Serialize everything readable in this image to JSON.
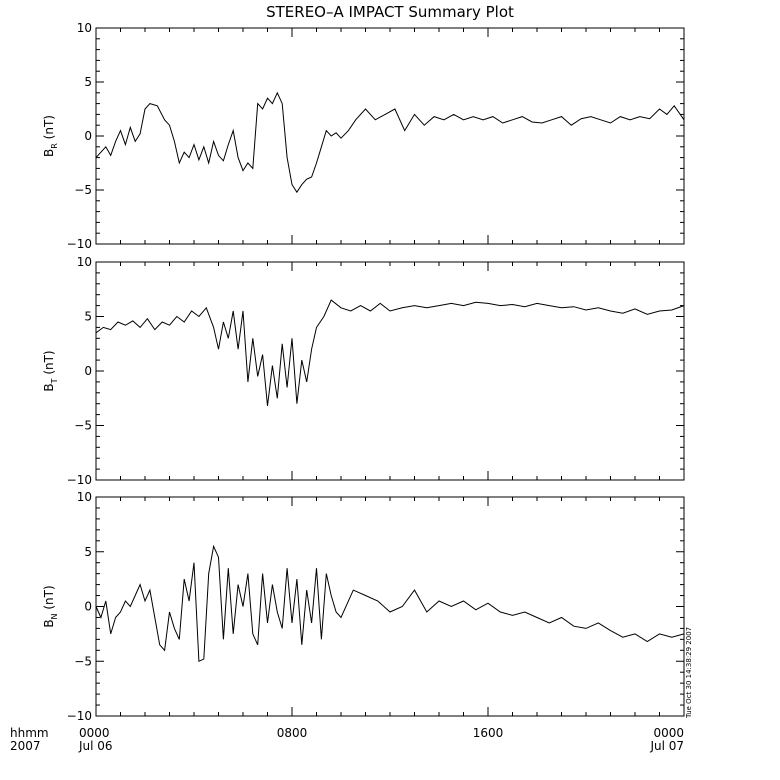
{
  "chart_data": {
    "type": "line",
    "title": "STEREO–A IMPACT Summary Plot",
    "x_axis": {
      "corner_labels": [
        "hhmm",
        "2007"
      ],
      "range_hours": [
        0,
        24
      ],
      "ticks": [
        {
          "hour": 0,
          "line1": "0000",
          "line2": "Jul 06"
        },
        {
          "hour": 8,
          "line1": "0800",
          "line2": ""
        },
        {
          "hour": 16,
          "line1": "1600",
          "line2": ""
        },
        {
          "hour": 24,
          "line1": "0000",
          "line2": "Jul 07"
        }
      ]
    },
    "timestamp_label": "Tue Oct 30 14:38:29 2007",
    "panels": [
      {
        "ylabel_main": "B",
        "ylabel_sub": "R",
        "ylabel_unit": " (nT)",
        "ylim": [
          -10,
          10
        ],
        "yticks": [
          -10,
          -5,
          0,
          5,
          10
        ],
        "x": [
          0,
          0.2,
          0.4,
          0.6,
          0.8,
          1.0,
          1.2,
          1.4,
          1.6,
          1.8,
          2.0,
          2.2,
          2.5,
          2.8,
          3.0,
          3.2,
          3.4,
          3.6,
          3.8,
          4.0,
          4.2,
          4.4,
          4.6,
          4.8,
          5.0,
          5.2,
          5.4,
          5.6,
          5.8,
          6.0,
          6.2,
          6.4,
          6.6,
          6.8,
          7.0,
          7.2,
          7.4,
          7.6,
          7.8,
          8.0,
          8.2,
          8.4,
          8.6,
          8.8,
          9.0,
          9.2,
          9.4,
          9.6,
          9.8,
          10.0,
          10.3,
          10.6,
          11.0,
          11.4,
          11.8,
          12.2,
          12.6,
          13.0,
          13.4,
          13.8,
          14.2,
          14.6,
          15.0,
          15.4,
          15.8,
          16.2,
          16.6,
          17.0,
          17.4,
          17.8,
          18.2,
          18.6,
          19.0,
          19.4,
          19.8,
          20.2,
          20.6,
          21.0,
          21.4,
          21.8,
          22.2,
          22.6,
          23.0,
          23.3,
          23.6,
          24.0
        ],
        "y": [
          -2.0,
          -1.5,
          -1.0,
          -1.8,
          -0.5,
          0.5,
          -0.8,
          0.8,
          -0.5,
          0.2,
          2.5,
          3.0,
          2.8,
          1.5,
          1.0,
          -0.5,
          -2.5,
          -1.5,
          -2.0,
          -0.8,
          -2.2,
          -1.0,
          -2.5,
          -0.5,
          -1.8,
          -2.3,
          -0.8,
          0.5,
          -2.0,
          -3.2,
          -2.5,
          -3.0,
          3.0,
          2.5,
          3.5,
          3.0,
          4.0,
          3.0,
          -2.0,
          -4.5,
          -5.2,
          -4.5,
          -4.0,
          -3.8,
          -2.5,
          -1.0,
          0.5,
          0.0,
          0.3,
          -0.2,
          0.5,
          1.5,
          2.5,
          1.5,
          2.0,
          2.5,
          0.5,
          2.0,
          1.0,
          1.8,
          1.5,
          2.0,
          1.5,
          1.8,
          1.5,
          1.8,
          1.2,
          1.5,
          1.8,
          1.3,
          1.2,
          1.5,
          1.8,
          1.0,
          1.6,
          1.8,
          1.5,
          1.2,
          1.8,
          1.5,
          1.8,
          1.6,
          2.5,
          2.0,
          2.8,
          1.5
        ]
      },
      {
        "ylabel_main": "B",
        "ylabel_sub": "T",
        "ylabel_unit": " (nT)",
        "ylim": [
          -10,
          10
        ],
        "yticks": [
          -10,
          -5,
          0,
          5,
          10
        ],
        "x": [
          0,
          0.3,
          0.6,
          0.9,
          1.2,
          1.5,
          1.8,
          2.1,
          2.4,
          2.7,
          3.0,
          3.3,
          3.6,
          3.9,
          4.2,
          4.5,
          4.8,
          5.0,
          5.2,
          5.4,
          5.6,
          5.8,
          6.0,
          6.2,
          6.4,
          6.6,
          6.8,
          7.0,
          7.2,
          7.4,
          7.6,
          7.8,
          8.0,
          8.2,
          8.4,
          8.6,
          8.8,
          9.0,
          9.3,
          9.6,
          10.0,
          10.4,
          10.8,
          11.2,
          11.6,
          12.0,
          12.5,
          13.0,
          13.5,
          14.0,
          14.5,
          15.0,
          15.5,
          16.0,
          16.5,
          17.0,
          17.5,
          18.0,
          18.5,
          19.0,
          19.5,
          20.0,
          20.5,
          21.0,
          21.5,
          22.0,
          22.5,
          23.0,
          23.5,
          24.0
        ],
        "y": [
          3.5,
          4.0,
          3.8,
          4.5,
          4.2,
          4.6,
          4.0,
          4.8,
          3.8,
          4.5,
          4.2,
          5.0,
          4.5,
          5.5,
          5.0,
          5.8,
          4.0,
          2.0,
          4.5,
          3.0,
          5.5,
          2.0,
          5.5,
          -1.0,
          3.0,
          -0.5,
          1.5,
          -3.2,
          0.5,
          -2.5,
          2.5,
          -1.5,
          3.0,
          -3.0,
          1.0,
          -1.0,
          2.0,
          4.0,
          5.0,
          6.5,
          5.8,
          5.5,
          6.0,
          5.5,
          6.2,
          5.5,
          5.8,
          6.0,
          5.8,
          6.0,
          6.2,
          6.0,
          6.3,
          6.2,
          6.0,
          6.1,
          5.9,
          6.2,
          6.0,
          5.8,
          5.9,
          5.6,
          5.8,
          5.5,
          5.3,
          5.7,
          5.2,
          5.5,
          5.6,
          6.0
        ]
      },
      {
        "ylabel_main": "B",
        "ylabel_sub": "N",
        "ylabel_unit": " (nT)",
        "ylim": [
          -10,
          10
        ],
        "yticks": [
          -10,
          -5,
          0,
          5,
          10
        ],
        "x": [
          0,
          0.2,
          0.4,
          0.6,
          0.8,
          1.0,
          1.2,
          1.4,
          1.6,
          1.8,
          2.0,
          2.2,
          2.4,
          2.6,
          2.8,
          3.0,
          3.2,
          3.4,
          3.6,
          3.8,
          4.0,
          4.2,
          4.4,
          4.6,
          4.8,
          5.0,
          5.2,
          5.4,
          5.6,
          5.8,
          6.0,
          6.2,
          6.4,
          6.6,
          6.8,
          7.0,
          7.2,
          7.4,
          7.6,
          7.8,
          8.0,
          8.2,
          8.4,
          8.6,
          8.8,
          9.0,
          9.2,
          9.4,
          9.6,
          9.8,
          10.0,
          10.5,
          11.0,
          11.5,
          12.0,
          12.5,
          13.0,
          13.5,
          14.0,
          14.5,
          15.0,
          15.5,
          16.0,
          16.5,
          17.0,
          17.5,
          18.0,
          18.5,
          19.0,
          19.5,
          20.0,
          20.5,
          21.0,
          21.5,
          22.0,
          22.5,
          23.0,
          23.5,
          24.0
        ],
        "y": [
          0.0,
          -1.0,
          0.5,
          -2.5,
          -1.0,
          -0.5,
          0.5,
          0.0,
          1.0,
          2.0,
          0.5,
          1.5,
          -1.0,
          -3.5,
          -4.0,
          -0.5,
          -2.0,
          -3.0,
          2.5,
          0.5,
          4.0,
          -5.0,
          -4.8,
          3.0,
          5.5,
          4.5,
          -3.0,
          3.5,
          -2.5,
          2.0,
          0.0,
          3.0,
          -2.5,
          -3.5,
          3.0,
          -1.5,
          2.0,
          -0.5,
          -2.0,
          3.5,
          -1.5,
          2.5,
          -3.5,
          1.5,
          -1.5,
          3.5,
          -3.0,
          3.0,
          1.0,
          -0.5,
          -1.0,
          1.5,
          1.0,
          0.5,
          -0.5,
          0.0,
          1.5,
          -0.5,
          0.5,
          0.0,
          0.5,
          -0.3,
          0.3,
          -0.5,
          -0.8,
          -0.5,
          -1.0,
          -1.5,
          -1.0,
          -1.8,
          -2.0,
          -1.5,
          -2.2,
          -2.8,
          -2.5,
          -3.2,
          -2.5,
          -2.8,
          -2.5
        ]
      }
    ]
  }
}
